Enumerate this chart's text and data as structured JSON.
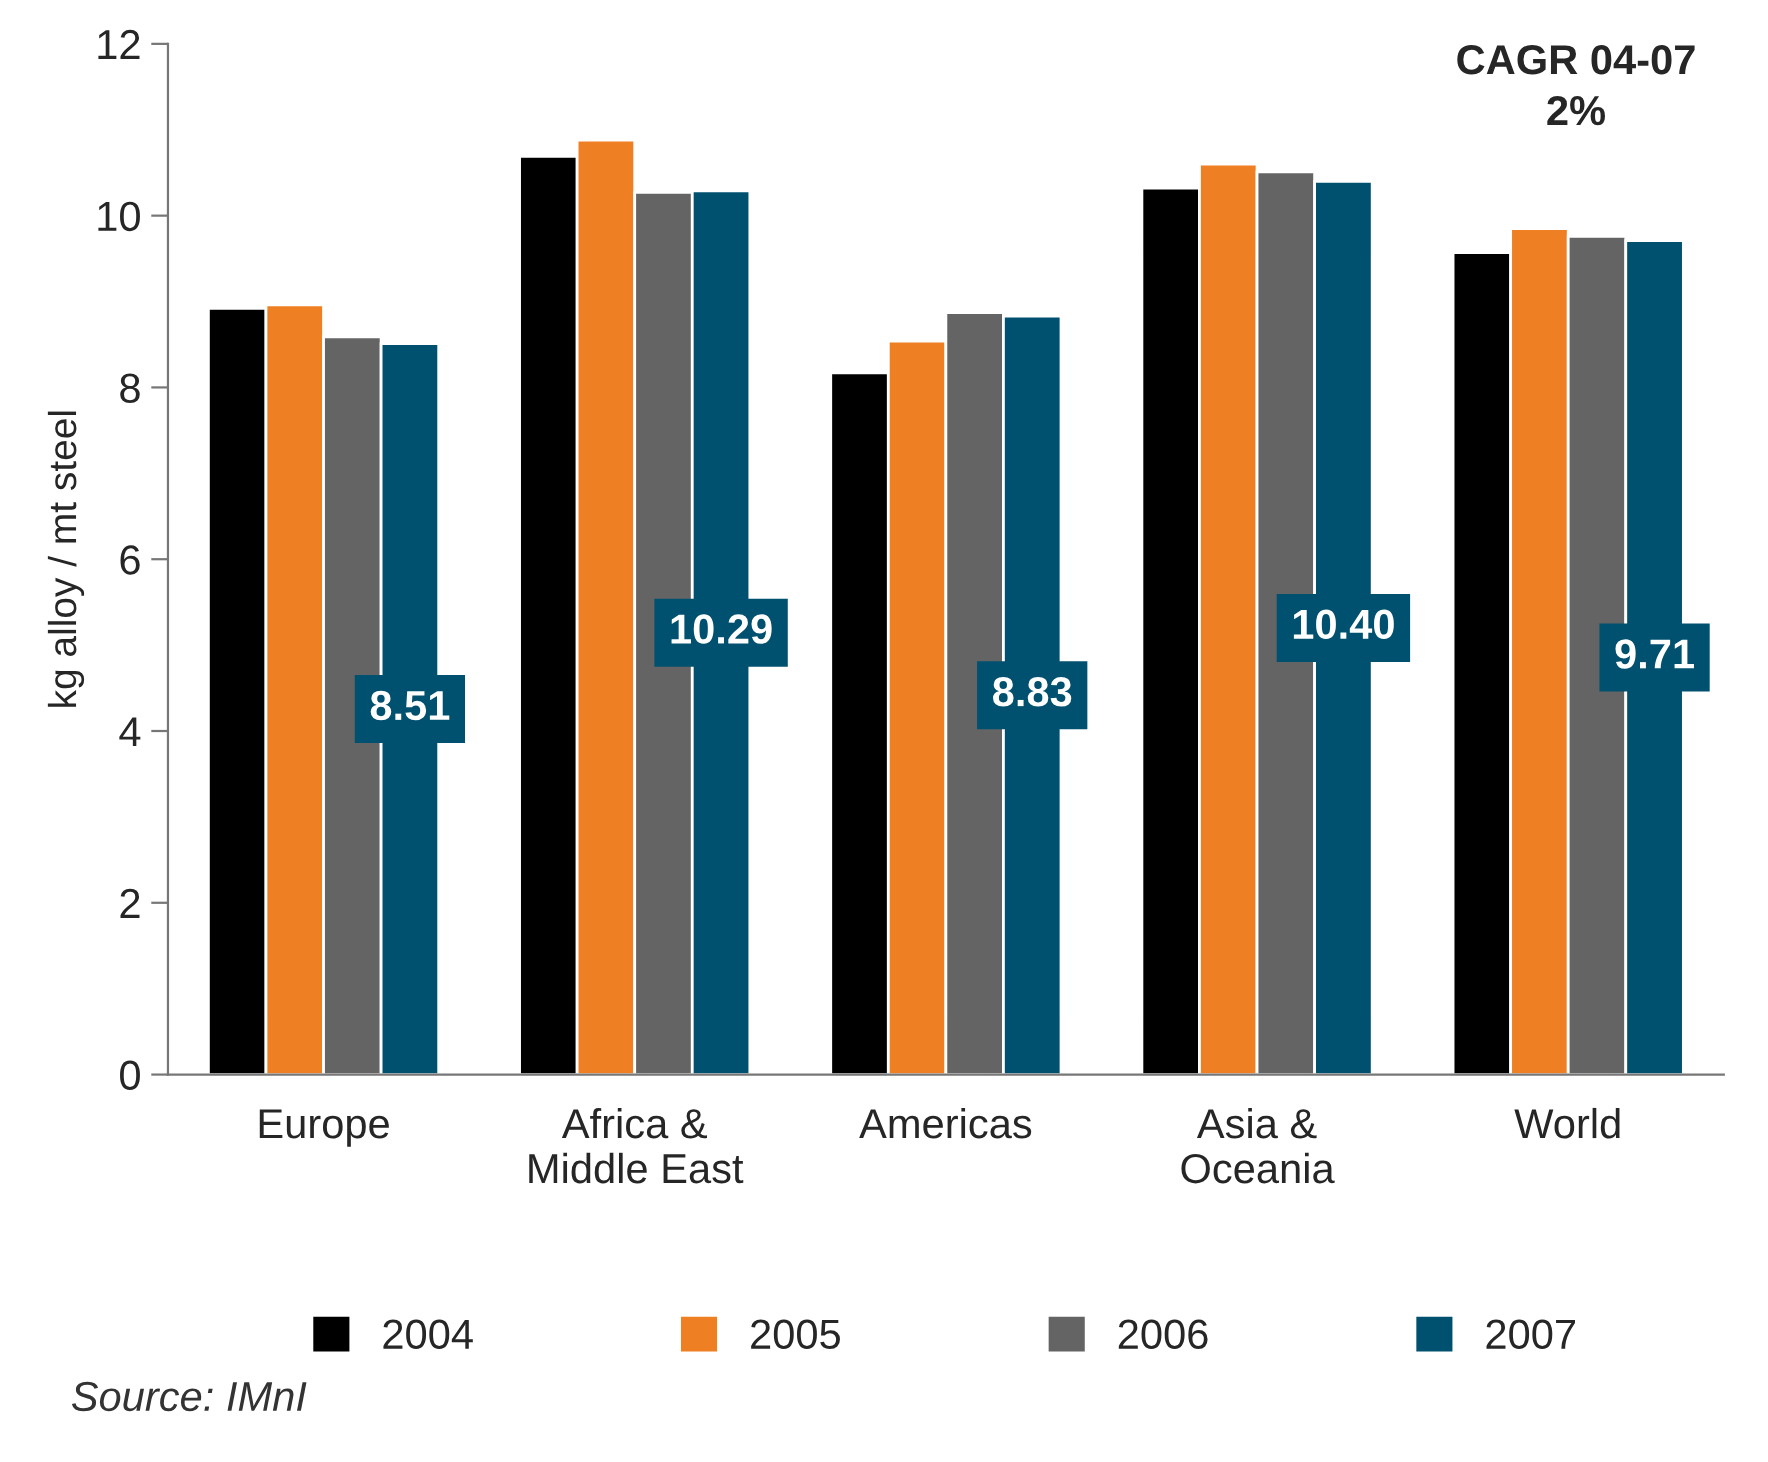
{
  "chart_data": {
    "type": "bar",
    "ylabel": "kg alloy / mt steel",
    "categories": [
      "Europe",
      "Africa &\nMiddle East",
      "Americas",
      "Asia &\nOceania",
      "World"
    ],
    "series": [
      {
        "name": "2004",
        "color": "#000000",
        "values": [
          8.92,
          10.69,
          8.17,
          10.32,
          9.57
        ]
      },
      {
        "name": "2005",
        "color": "#ee7f22",
        "values": [
          8.96,
          10.88,
          8.54,
          10.6,
          9.85
        ]
      },
      {
        "name": "2006",
        "color": "#646464",
        "values": [
          8.59,
          10.27,
          8.87,
          10.51,
          9.76
        ]
      },
      {
        "name": "2007",
        "color": "#00506f",
        "values": [
          8.51,
          10.29,
          8.83,
          10.4,
          9.71
        ],
        "value_labels": [
          "8.51",
          "10.29",
          "8.83",
          "10.40",
          "9.71"
        ]
      }
    ],
    "ylim": [
      0,
      12
    ],
    "yticks": [
      0,
      2,
      4,
      6,
      8,
      10,
      12
    ],
    "grid": false,
    "legend": "bottom",
    "annotations": [
      "CAGR 04-07\n2%",
      "Source: IMnI"
    ]
  }
}
